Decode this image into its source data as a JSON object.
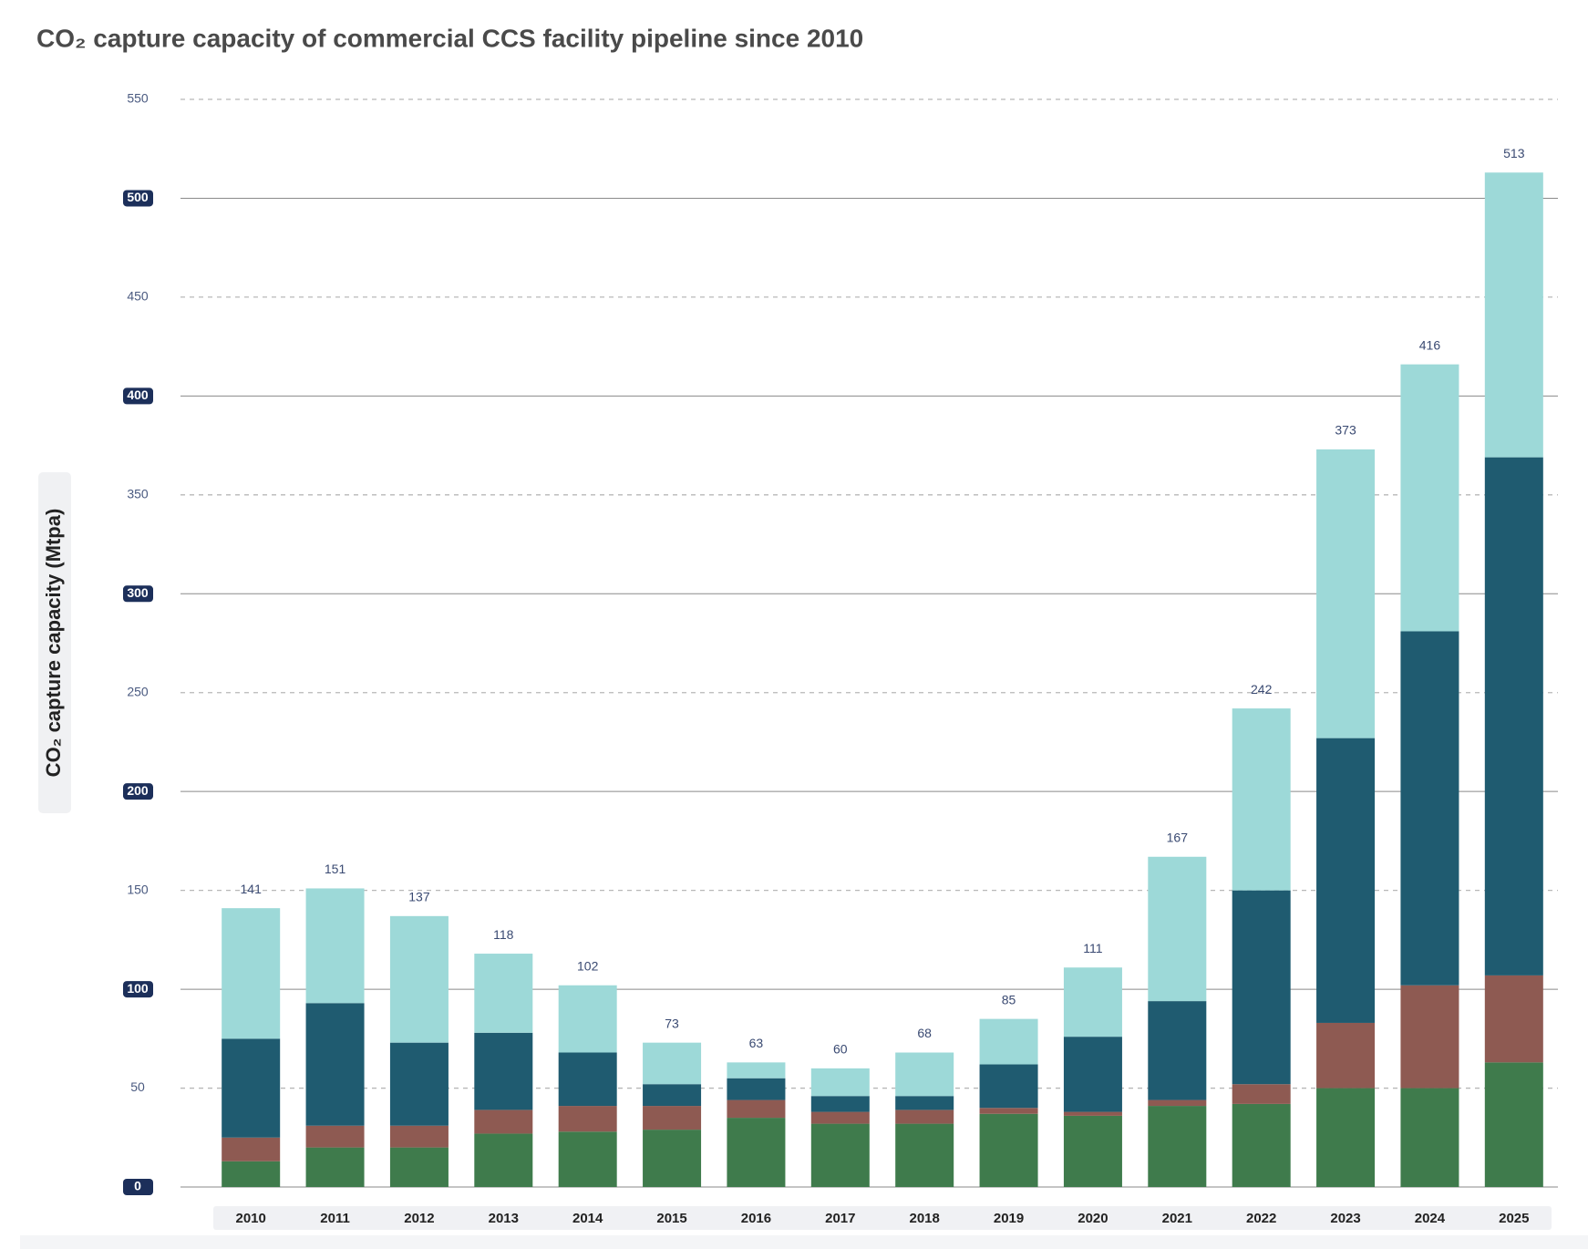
{
  "chart_data": {
    "type": "stacked-bar",
    "title": "CO₂ capture capacity of commercial CCS facility pipeline since 2010",
    "y_label": "CO₂ capture capacity (Mtpa)",
    "categories": [
      "2010",
      "2011",
      "2012",
      "2013",
      "2014",
      "2015",
      "2016",
      "2017",
      "2018",
      "2019",
      "2020",
      "2021",
      "2022",
      "2023",
      "2024",
      "2025"
    ],
    "series": [
      {
        "color": "#3f7b4c",
        "values": [
          13,
          20,
          20,
          27,
          28,
          29,
          35,
          32,
          32,
          37,
          36,
          41,
          42,
          50,
          50,
          63
        ]
      },
      {
        "color": "#8e5a52",
        "values": [
          12,
          11,
          11,
          12,
          13,
          12,
          9,
          6,
          7,
          3,
          2,
          3,
          10,
          33,
          52,
          44
        ]
      },
      {
        "color": "#1f5b70",
        "values": [
          50,
          62,
          42,
          39,
          27,
          11,
          11,
          8,
          7,
          22,
          38,
          50,
          98,
          144,
          179,
          262
        ]
      },
      {
        "color": "#9dd9d8",
        "values": [
          66,
          58,
          64,
          40,
          34,
          21,
          8,
          14,
          22,
          23,
          35,
          73,
          92,
          146,
          135,
          144
        ]
      }
    ],
    "totals": [
      141,
      151,
      137,
      118,
      102,
      73,
      63,
      60,
      68,
      85,
      111,
      167,
      242,
      373,
      416,
      513
    ],
    "ylim": [
      0,
      550
    ],
    "yticks": [
      0,
      50,
      100,
      150,
      200,
      250,
      300,
      350,
      400,
      450,
      500,
      550
    ],
    "grid": true
  }
}
